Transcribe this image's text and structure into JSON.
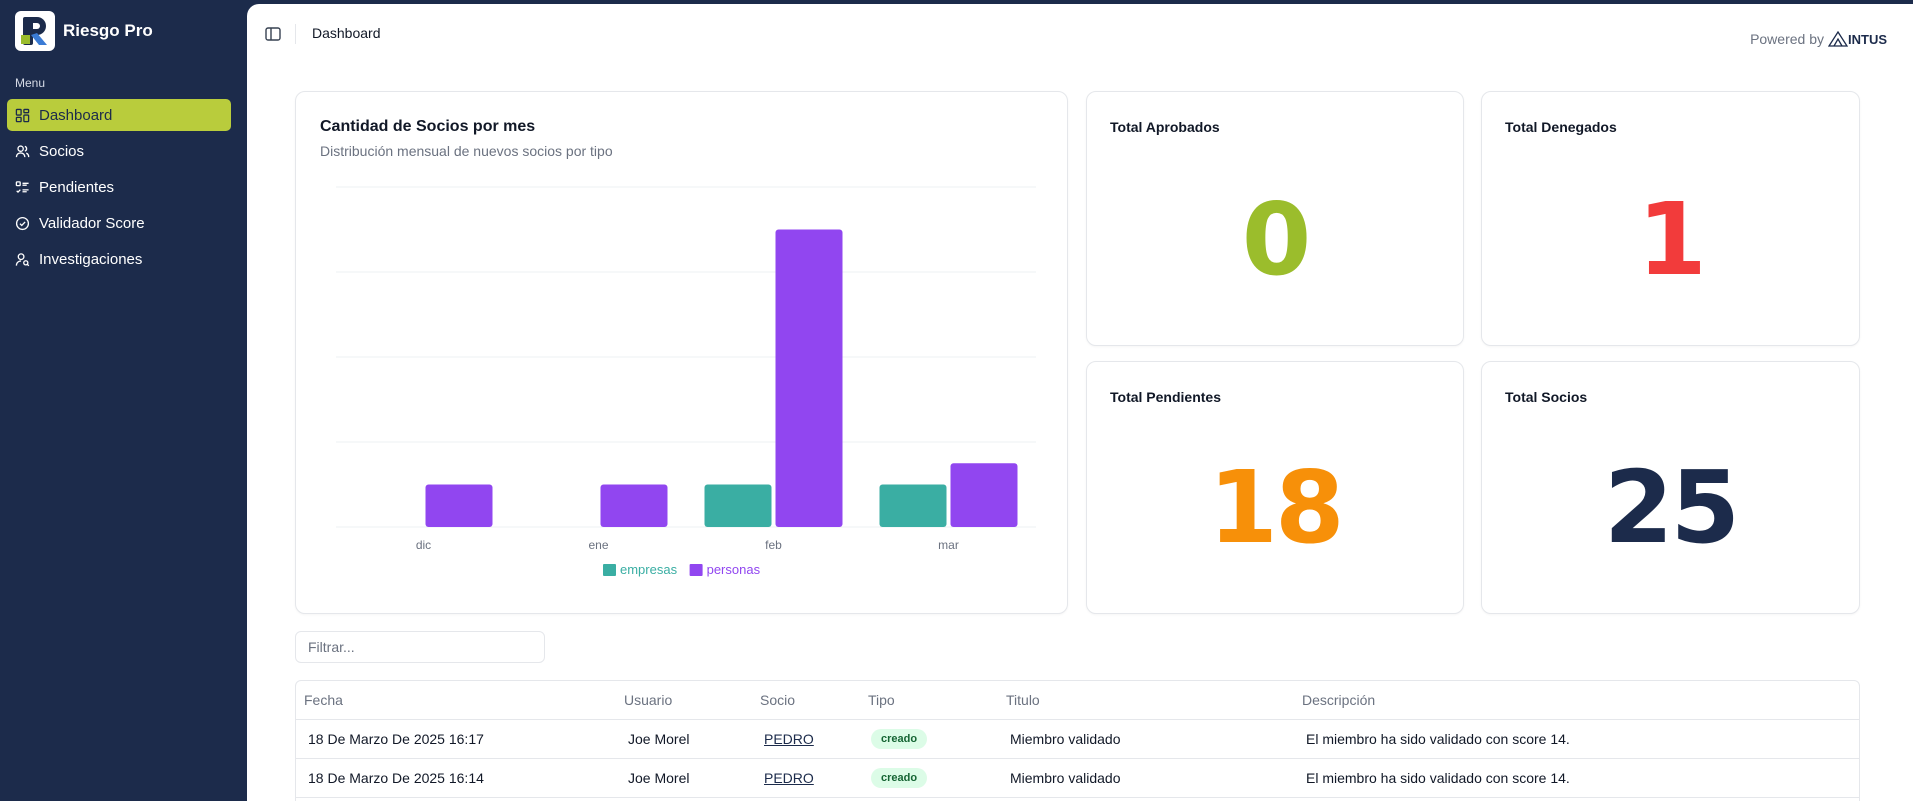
{
  "app": {
    "name": "Riesgo Pro"
  },
  "sidebar": {
    "menu_label": "Menu",
    "items": [
      {
        "label": "Dashboard",
        "icon": "dashboard-icon",
        "active": true
      },
      {
        "label": "Socios",
        "icon": "users-icon"
      },
      {
        "label": "Pendientes",
        "icon": "list-check-icon"
      },
      {
        "label": "Validador Score",
        "icon": "circle-check-icon"
      },
      {
        "label": "Investigaciones",
        "icon": "user-search-icon"
      }
    ]
  },
  "header": {
    "breadcrumb": "Dashboard",
    "powered_by": "Powered by",
    "powered_brand": "INTUS"
  },
  "chart_card": {
    "title": "Cantidad de Socios por mes",
    "subtitle": "Distribución mensual de nuevos socios por tipo"
  },
  "chart_data": {
    "type": "bar",
    "categories": [
      "dic",
      "ene",
      "feb",
      "mar"
    ],
    "series": [
      {
        "name": "empresas",
        "color": "#3aaea3",
        "values": [
          0,
          0,
          1,
          1
        ]
      },
      {
        "name": "personas",
        "color": "#9146f0",
        "values": [
          1,
          1,
          7,
          1.5
        ]
      }
    ],
    "ylim": [
      0,
      8
    ],
    "grid": true,
    "legend_position": "bottom"
  },
  "stats": [
    {
      "title": "Total Aprobados",
      "value": "0",
      "color": "#9bbd2c"
    },
    {
      "title": "Total Denegados",
      "value": "1",
      "color": "#f23b3b"
    },
    {
      "title": "Total Pendientes",
      "value": "18",
      "color": "#f79009"
    },
    {
      "title": "Total Socios",
      "value": "25",
      "color": "#1c2b4b"
    }
  ],
  "filter": {
    "placeholder": "Filtrar..."
  },
  "table": {
    "headers": [
      "Fecha",
      "Usuario",
      "Socio",
      "Tipo",
      "Titulo",
      "Descripción"
    ],
    "rows": [
      {
        "fecha": "18 De Marzo De 2025 16:17",
        "usuario": "Joe Morel",
        "socio": "PEDRO",
        "tipo": "creado",
        "titulo": "Miembro validado",
        "descripcion": "El miembro ha sido validado con score 14."
      },
      {
        "fecha": "18 De Marzo De 2025 16:14",
        "usuario": "Joe Morel",
        "socio": "PEDRO",
        "tipo": "creado",
        "titulo": "Miembro validado",
        "descripcion": "El miembro ha sido validado con score 14."
      },
      {
        "fecha": "",
        "usuario": "",
        "socio": "",
        "tipo": "",
        "titulo": "",
        "descripcion": ""
      }
    ]
  }
}
